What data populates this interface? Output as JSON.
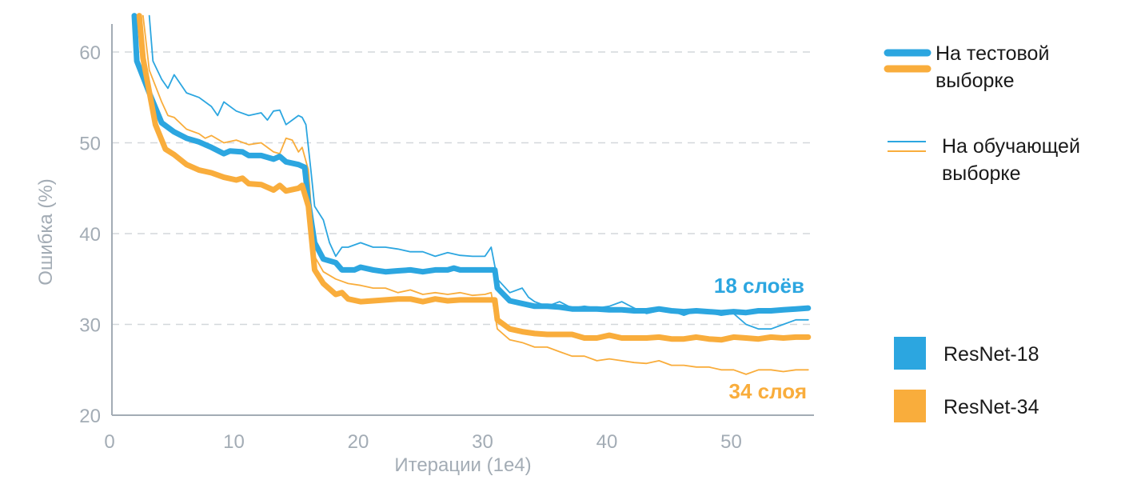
{
  "chart_data": {
    "type": "line",
    "xlabel": "Итерации (1e4)",
    "ylabel": "Ошибка (%)",
    "xlim": [
      0,
      56.5
    ],
    "ylim": [
      20,
      64
    ],
    "x_ticks": [
      "0",
      "10",
      "20",
      "30",
      "40",
      "50"
    ],
    "y_ticks": [
      "20",
      "30",
      "40",
      "50",
      "60"
    ],
    "grid": "horizontal dashed",
    "colors": {
      "resnet18": "#2ca6e0",
      "resnet34": "#f9ad3c",
      "axis": "#a3acb5"
    },
    "series": [
      {
        "key": "r18_test",
        "model": "ResNet-18",
        "kind": "test",
        "color": "#2ca6e0",
        "points": [
          [
            1.8,
            64
          ],
          [
            2,
            59
          ],
          [
            3,
            55.5
          ],
          [
            4,
            52.2
          ],
          [
            5,
            51.2
          ],
          [
            6,
            50.5
          ],
          [
            7,
            50.1
          ],
          [
            8,
            49.5
          ],
          [
            9,
            48.8
          ],
          [
            9.5,
            49.1
          ],
          [
            10.5,
            49
          ],
          [
            11,
            48.6
          ],
          [
            12,
            48.6
          ],
          [
            13,
            48.2
          ],
          [
            13.5,
            48.5
          ],
          [
            14,
            47.9
          ],
          [
            15,
            47.6
          ],
          [
            15.5,
            47.3
          ],
          [
            15.8,
            43.5
          ],
          [
            16.3,
            39
          ],
          [
            17,
            37.2
          ],
          [
            18,
            36.8
          ],
          [
            18.5,
            36
          ],
          [
            19.5,
            36
          ],
          [
            20,
            36.3
          ],
          [
            21,
            36
          ],
          [
            22,
            35.8
          ],
          [
            23,
            35.9
          ],
          [
            24,
            36
          ],
          [
            25,
            35.8
          ],
          [
            26,
            36
          ],
          [
            27,
            36
          ],
          [
            27.5,
            36.2
          ],
          [
            28,
            36
          ],
          [
            29,
            36
          ],
          [
            30,
            36
          ],
          [
            30.8,
            36
          ],
          [
            31,
            34
          ],
          [
            32,
            32.6
          ],
          [
            33,
            32.3
          ],
          [
            34,
            32
          ],
          [
            35,
            32
          ],
          [
            36,
            31.9
          ],
          [
            37,
            31.7
          ],
          [
            38,
            31.7
          ],
          [
            39,
            31.7
          ],
          [
            40,
            31.6
          ],
          [
            41,
            31.6
          ],
          [
            42,
            31.5
          ],
          [
            43,
            31.5
          ],
          [
            44,
            31.7
          ],
          [
            45,
            31.5
          ],
          [
            46,
            31.4
          ],
          [
            47,
            31.5
          ],
          [
            48,
            31.4
          ],
          [
            49,
            31.3
          ],
          [
            50,
            31.4
          ],
          [
            51,
            31.3
          ],
          [
            52,
            31.5
          ],
          [
            53,
            31.5
          ],
          [
            54,
            31.6
          ],
          [
            55,
            31.7
          ],
          [
            56,
            31.8
          ]
        ]
      },
      {
        "key": "r34_test",
        "model": "ResNet-34",
        "kind": "test",
        "color": "#f9ad3c",
        "points": [
          [
            2.2,
            64
          ],
          [
            2.5,
            59.3
          ],
          [
            3.5,
            52
          ],
          [
            4.3,
            49.3
          ],
          [
            5,
            48.7
          ],
          [
            6,
            47.6
          ],
          [
            7,
            47
          ],
          [
            8,
            46.7
          ],
          [
            9,
            46.2
          ],
          [
            10,
            45.9
          ],
          [
            10.5,
            46.1
          ],
          [
            11,
            45.5
          ],
          [
            12,
            45.4
          ],
          [
            13,
            44.8
          ],
          [
            13.5,
            45.3
          ],
          [
            14,
            44.7
          ],
          [
            15,
            45
          ],
          [
            15.3,
            45.3
          ],
          [
            15.8,
            43
          ],
          [
            16.3,
            36
          ],
          [
            17,
            34.5
          ],
          [
            18,
            33.3
          ],
          [
            18.5,
            33.5
          ],
          [
            19,
            32.8
          ],
          [
            20,
            32.5
          ],
          [
            21,
            32.6
          ],
          [
            22,
            32.7
          ],
          [
            23,
            32.8
          ],
          [
            24,
            32.8
          ],
          [
            25,
            32.5
          ],
          [
            26,
            32.8
          ],
          [
            27,
            32.6
          ],
          [
            28,
            32.7
          ],
          [
            29,
            32.7
          ],
          [
            30,
            32.7
          ],
          [
            30.8,
            32.7
          ],
          [
            31,
            30.5
          ],
          [
            32,
            29.5
          ],
          [
            33,
            29.2
          ],
          [
            34,
            29
          ],
          [
            35,
            28.9
          ],
          [
            36,
            28.9
          ],
          [
            37,
            28.9
          ],
          [
            38,
            28.5
          ],
          [
            39,
            28.5
          ],
          [
            40,
            28.8
          ],
          [
            41,
            28.5
          ],
          [
            42,
            28.5
          ],
          [
            43,
            28.5
          ],
          [
            44,
            28.6
          ],
          [
            45,
            28.4
          ],
          [
            46,
            28.4
          ],
          [
            47,
            28.6
          ],
          [
            48,
            28.4
          ],
          [
            49,
            28.3
          ],
          [
            50,
            28.6
          ],
          [
            51,
            28.5
          ],
          [
            52,
            28.4
          ],
          [
            53,
            28.6
          ],
          [
            54,
            28.5
          ],
          [
            55,
            28.6
          ],
          [
            56,
            28.6
          ]
        ]
      },
      {
        "key": "r18_train",
        "model": "ResNet-18",
        "kind": "train",
        "color": "#2ca6e0",
        "points": [
          [
            3,
            64
          ],
          [
            3.3,
            59
          ],
          [
            4,
            57
          ],
          [
            4.5,
            56
          ],
          [
            5,
            57.5
          ],
          [
            6,
            55.5
          ],
          [
            7,
            55
          ],
          [
            8,
            54
          ],
          [
            8.5,
            53
          ],
          [
            9,
            54.5
          ],
          [
            10,
            53.5
          ],
          [
            11,
            53
          ],
          [
            12,
            53.3
          ],
          [
            12.5,
            52.5
          ],
          [
            13,
            53.5
          ],
          [
            13.5,
            53.6
          ],
          [
            14,
            52
          ],
          [
            14.5,
            52.5
          ],
          [
            15,
            53
          ],
          [
            15.3,
            52.8
          ],
          [
            15.6,
            52
          ],
          [
            16,
            47
          ],
          [
            16.3,
            43
          ],
          [
            17,
            41.5
          ],
          [
            17.5,
            39
          ],
          [
            18,
            37.5
          ],
          [
            18.5,
            38.5
          ],
          [
            19,
            38.5
          ],
          [
            20,
            39
          ],
          [
            21,
            38.5
          ],
          [
            22,
            38.5
          ],
          [
            23,
            38.3
          ],
          [
            24,
            38
          ],
          [
            25,
            38
          ],
          [
            26,
            37.5
          ],
          [
            27,
            37.9
          ],
          [
            28,
            37.6
          ],
          [
            29,
            37.5
          ],
          [
            30,
            37.5
          ],
          [
            30.5,
            38.5
          ],
          [
            31,
            35
          ],
          [
            32,
            33.5
          ],
          [
            33,
            34
          ],
          [
            33.5,
            33
          ],
          [
            34,
            32.5
          ],
          [
            35,
            32
          ],
          [
            36,
            32.5
          ],
          [
            37,
            31.8
          ],
          [
            38,
            32
          ],
          [
            39,
            31.8
          ],
          [
            40,
            32
          ],
          [
            41,
            32.5
          ],
          [
            42,
            31.8
          ],
          [
            43,
            31.2
          ],
          [
            44,
            31.5
          ],
          [
            45,
            31.5
          ],
          [
            46,
            31
          ],
          [
            47,
            31.5
          ],
          [
            48,
            31.3
          ],
          [
            49,
            31
          ],
          [
            50,
            31.2
          ],
          [
            51,
            30
          ],
          [
            52,
            29.5
          ],
          [
            53,
            29.5
          ],
          [
            54,
            30
          ],
          [
            55,
            30.5
          ],
          [
            56,
            30.5
          ]
        ]
      },
      {
        "key": "r34_train",
        "model": "ResNet-34",
        "kind": "train",
        "color": "#f9ad3c",
        "points": [
          [
            2.5,
            64
          ],
          [
            3,
            58
          ],
          [
            4,
            54.5
          ],
          [
            4.5,
            53
          ],
          [
            5,
            52.8
          ],
          [
            6,
            51.5
          ],
          [
            7,
            51
          ],
          [
            7.5,
            50.5
          ],
          [
            8,
            50.8
          ],
          [
            9,
            50
          ],
          [
            10,
            50.3
          ],
          [
            11,
            49.8
          ],
          [
            12,
            50
          ],
          [
            13,
            49
          ],
          [
            13.5,
            48.8
          ],
          [
            14,
            50.5
          ],
          [
            14.5,
            50.3
          ],
          [
            15,
            49
          ],
          [
            15.3,
            49.5
          ],
          [
            15.8,
            47
          ],
          [
            16.3,
            37.5
          ],
          [
            17,
            35.8
          ],
          [
            18,
            35
          ],
          [
            19,
            34.5
          ],
          [
            20,
            34.3
          ],
          [
            21,
            34
          ],
          [
            22,
            34
          ],
          [
            23,
            33.5
          ],
          [
            24,
            33.8
          ],
          [
            25,
            33.3
          ],
          [
            26,
            33.5
          ],
          [
            27,
            33.3
          ],
          [
            28,
            33.5
          ],
          [
            29,
            33.2
          ],
          [
            30,
            33.3
          ],
          [
            30.5,
            33.5
          ],
          [
            31,
            29.5
          ],
          [
            32,
            28.3
          ],
          [
            33,
            28
          ],
          [
            34,
            27.5
          ],
          [
            35,
            27.5
          ],
          [
            36,
            27
          ],
          [
            37,
            26.5
          ],
          [
            38,
            26.5
          ],
          [
            39,
            26
          ],
          [
            40,
            26.2
          ],
          [
            41,
            26
          ],
          [
            42,
            25.8
          ],
          [
            43,
            25.7
          ],
          [
            44,
            26
          ],
          [
            45,
            25.5
          ],
          [
            46,
            25.5
          ],
          [
            47,
            25.3
          ],
          [
            48,
            25.3
          ],
          [
            49,
            25
          ],
          [
            50,
            25
          ],
          [
            51,
            24.5
          ],
          [
            52,
            25
          ],
          [
            53,
            25
          ],
          [
            54,
            24.8
          ],
          [
            55,
            25
          ],
          [
            56,
            25
          ]
        ]
      }
    ],
    "annotations": [
      {
        "key": "r18",
        "text": "18 слоёв",
        "color": "#2ca6e0"
      },
      {
        "key": "r34",
        "text": "34 слоя",
        "color": "#f9ad3c"
      }
    ],
    "legend": {
      "test": "На тестовой выборке",
      "train": "На обучающей выборке",
      "models": [
        "ResNet-18",
        "ResNet-34"
      ]
    }
  }
}
